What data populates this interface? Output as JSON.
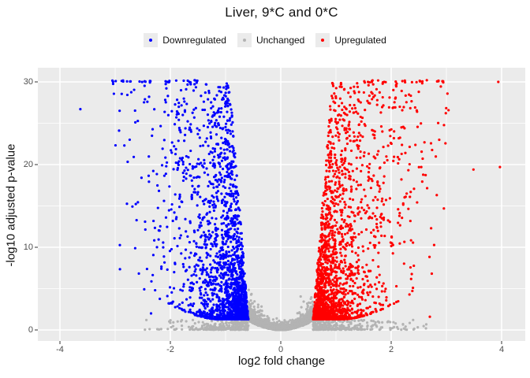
{
  "chart_data": {
    "type": "scatter",
    "variant": "volcano",
    "title": "Liver, 9*C and 0*C",
    "xlabel": "log2 fold change",
    "ylabel": "-log10 adjusted p-value",
    "xlim": [
      -4.42,
      4.42
    ],
    "ylim": [
      -1.5,
      31.7
    ],
    "xticks": [
      -4,
      -2,
      0,
      2,
      4
    ],
    "yticks": [
      0,
      10,
      20,
      30
    ],
    "xticks_minor": [
      -3,
      -1,
      1,
      3
    ],
    "yticks_minor": [
      5,
      15,
      25
    ],
    "grid": true,
    "panel_bg": "#ebebeb",
    "grid_major_color": "#ffffff",
    "grid_minor_color": "#f5f5f5",
    "tick_mark_color": "#333333",
    "tick_label_color": "#4d4d4d",
    "point_radius": 1.6,
    "legend": {
      "position": "top",
      "entries": [
        {
          "label": "Downregulated",
          "color": "#0000ff"
        },
        {
          "label": "Unchanged",
          "color": "#b3b3b3"
        },
        {
          "label": "Upregulated",
          "color": "#ff0000"
        }
      ]
    },
    "thresholds": {
      "abs_log2fc": 0.585,
      "neg_log10_p": 1.3
    },
    "series": [
      {
        "name": "Downregulated",
        "color": "#0000ff",
        "side": -1,
        "n": 2200
      },
      {
        "name": "Unchanged",
        "color": "#b3b3b3",
        "n_center": 2800,
        "n_bottom": 560
      },
      {
        "name": "Upregulated",
        "color": "#ff0000",
        "side": 1,
        "n": 2200
      }
    ],
    "generator": {
      "seed": 42,
      "dy_max": 28.6,
      "dy_pow": 3.1,
      "ex_base": 0.3,
      "ex_dy": 0.016,
      "drift": 0.012,
      "env_coef": 2.2,
      "env_off": 0.55,
      "env_pow": 1.7,
      "x_clip": 3.05,
      "y_cap": 30.2,
      "center_sigma": 0.19,
      "center_env": 3.6,
      "center_ycap": 10.8,
      "bottom_exp_mean": 0.5,
      "bottom_x_max": 2.75,
      "bottom_y_max": 1.18
    },
    "notable_points": [
      {
        "x": -3.63,
        "y": 26.7,
        "series": "Downregulated"
      },
      {
        "x": -2.99,
        "y": 30.1,
        "series": "Downregulated"
      },
      {
        "x": -2.46,
        "y": 27.9,
        "series": "Downregulated"
      },
      {
        "x": -1.56,
        "y": 30.2,
        "series": "Downregulated"
      },
      {
        "x": -2.35,
        "y": 2.0,
        "series": "Downregulated"
      },
      {
        "x": 3.94,
        "y": 30.0,
        "series": "Upregulated"
      },
      {
        "x": 3.97,
        "y": 19.7,
        "series": "Upregulated"
      },
      {
        "x": 3.49,
        "y": 19.4,
        "series": "Upregulated"
      },
      {
        "x": 2.5,
        "y": 28.8,
        "series": "Upregulated"
      },
      {
        "x": 2.08,
        "y": 28.1,
        "series": "Upregulated"
      },
      {
        "x": 2.87,
        "y": 23.0,
        "series": "Upregulated"
      },
      {
        "x": 2.7,
        "y": 1.6,
        "series": "Upregulated"
      }
    ]
  }
}
